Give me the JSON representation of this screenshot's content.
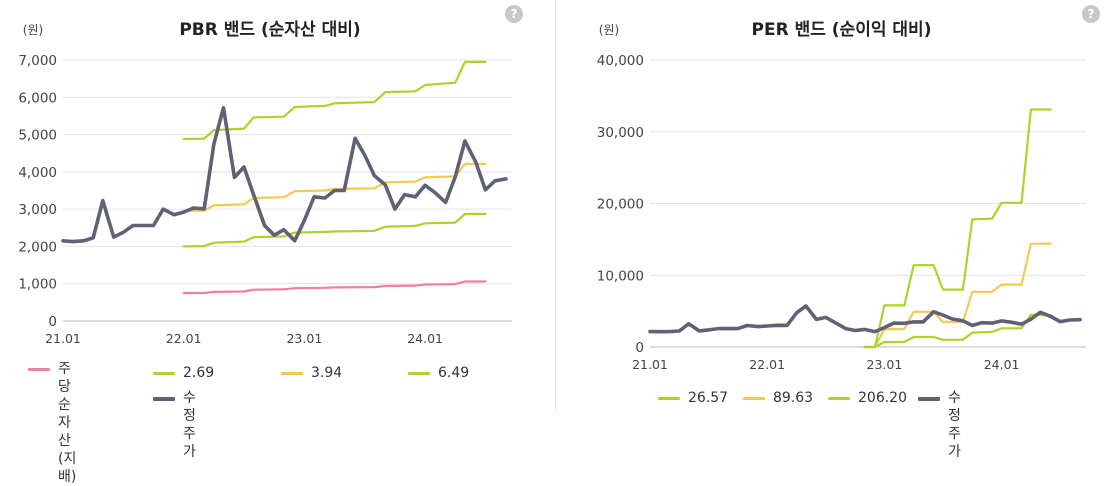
{
  "chart_data": [
    {
      "type": "line",
      "title": "PBR 밴드 (순자산 대비)",
      "y_unit": "(원)",
      "ylim": [
        0,
        7000
      ],
      "y_ticks": [
        "0",
        "1,000",
        "2,000",
        "3,000",
        "4,000",
        "5,000",
        "6,000",
        "7,000"
      ],
      "x_ticks": [
        "21.01",
        "22.01",
        "23.01",
        "24.01"
      ],
      "grid": "horizontal",
      "legend_position": "bottom",
      "series": [
        {
          "name": "주당순자산(지배)",
          "color": "#f07f9a",
          "points": [
            [
              2022.0,
              750
            ],
            [
              2022.17,
              750
            ],
            [
              2022.25,
              780
            ],
            [
              2022.5,
              790
            ],
            [
              2022.58,
              840
            ],
            [
              2022.83,
              850
            ],
            [
              2022.92,
              880
            ],
            [
              2023.17,
              890
            ],
            [
              2023.25,
              900
            ],
            [
              2023.58,
              910
            ],
            [
              2023.67,
              940
            ],
            [
              2023.92,
              950
            ],
            [
              2024.0,
              980
            ],
            [
              2024.25,
              990
            ],
            [
              2024.33,
              1060
            ],
            [
              2024.5,
              1060
            ]
          ]
        },
        {
          "name": "2.69",
          "color": "#a8d42c",
          "points": [
            [
              2022.0,
              2000
            ],
            [
              2022.17,
              2010
            ],
            [
              2022.25,
              2100
            ],
            [
              2022.5,
              2130
            ],
            [
              2022.58,
              2250
            ],
            [
              2022.83,
              2270
            ],
            [
              2022.92,
              2370
            ],
            [
              2023.17,
              2390
            ],
            [
              2023.25,
              2400
            ],
            [
              2023.58,
              2420
            ],
            [
              2023.67,
              2530
            ],
            [
              2023.92,
              2550
            ],
            [
              2024.0,
              2620
            ],
            [
              2024.25,
              2640
            ],
            [
              2024.33,
              2870
            ],
            [
              2024.5,
              2870
            ]
          ]
        },
        {
          "name": "3.94",
          "color": "#f5c850",
          "points": [
            [
              2022.0,
              2950
            ],
            [
              2022.17,
              2960
            ],
            [
              2022.25,
              3100
            ],
            [
              2022.5,
              3130
            ],
            [
              2022.58,
              3300
            ],
            [
              2022.83,
              3320
            ],
            [
              2022.92,
              3480
            ],
            [
              2023.17,
              3500
            ],
            [
              2023.25,
              3540
            ],
            [
              2023.58,
              3560
            ],
            [
              2023.67,
              3720
            ],
            [
              2023.92,
              3740
            ],
            [
              2024.0,
              3850
            ],
            [
              2024.25,
              3880
            ],
            [
              2024.33,
              4210
            ],
            [
              2024.5,
              4210
            ]
          ]
        },
        {
          "name": "6.49",
          "color": "#a8d42c",
          "points": [
            [
              2022.0,
              4880
            ],
            [
              2022.17,
              4890
            ],
            [
              2022.25,
              5120
            ],
            [
              2022.5,
              5160
            ],
            [
              2022.58,
              5460
            ],
            [
              2022.83,
              5480
            ],
            [
              2022.92,
              5740
            ],
            [
              2023.17,
              5770
            ],
            [
              2023.25,
              5840
            ],
            [
              2023.58,
              5870
            ],
            [
              2023.67,
              6140
            ],
            [
              2023.92,
              6160
            ],
            [
              2024.0,
              6330
            ],
            [
              2024.25,
              6390
            ],
            [
              2024.33,
              6950
            ],
            [
              2024.5,
              6950
            ]
          ]
        },
        {
          "name": "수정주가",
          "color": "#5f6175",
          "points": [
            [
              2021.0,
              2150
            ],
            [
              2021.08,
              2130
            ],
            [
              2021.17,
              2150
            ],
            [
              2021.25,
              2230
            ],
            [
              2021.33,
              3230
            ],
            [
              2021.42,
              2250
            ],
            [
              2021.5,
              2380
            ],
            [
              2021.58,
              2560
            ],
            [
              2021.67,
              2560
            ],
            [
              2021.75,
              2560
            ],
            [
              2021.83,
              3000
            ],
            [
              2021.92,
              2850
            ],
            [
              2022.0,
              2920
            ],
            [
              2022.08,
              3030
            ],
            [
              2022.17,
              3010
            ],
            [
              2022.25,
              4750
            ],
            [
              2022.33,
              5720
            ],
            [
              2022.42,
              3850
            ],
            [
              2022.5,
              4130
            ],
            [
              2022.58,
              3380
            ],
            [
              2022.67,
              2560
            ],
            [
              2022.75,
              2300
            ],
            [
              2022.83,
              2450
            ],
            [
              2022.92,
              2150
            ],
            [
              2023.0,
              2700
            ],
            [
              2023.08,
              3330
            ],
            [
              2023.17,
              3300
            ],
            [
              2023.25,
              3500
            ],
            [
              2023.33,
              3500
            ],
            [
              2023.42,
              4900
            ],
            [
              2023.5,
              4450
            ],
            [
              2023.58,
              3900
            ],
            [
              2023.67,
              3650
            ],
            [
              2023.75,
              3000
            ],
            [
              2023.83,
              3390
            ],
            [
              2023.92,
              3330
            ],
            [
              2024.0,
              3640
            ],
            [
              2024.08,
              3450
            ],
            [
              2024.17,
              3180
            ],
            [
              2024.25,
              3870
            ],
            [
              2024.33,
              4830
            ],
            [
              2024.42,
              4260
            ],
            [
              2024.5,
              3520
            ],
            [
              2024.58,
              3760
            ],
            [
              2024.67,
              3810
            ]
          ]
        }
      ]
    },
    {
      "type": "line",
      "title": "PER 밴드 (순이익 대비)",
      "y_unit": "(원)",
      "ylim": [
        0,
        40000
      ],
      "y_ticks": [
        "0",
        "10,000",
        "20,000",
        "30,000",
        "40,000"
      ],
      "x_ticks": [
        "21.01",
        "22.01",
        "23.01",
        "24.01"
      ],
      "grid": "horizontal",
      "legend_position": "bottom",
      "series": [
        {
          "name": "26.57",
          "color": "#a8d42c",
          "points": [
            [
              2022.83,
              0
            ],
            [
              2022.92,
              0
            ],
            [
              2023.0,
              700
            ],
            [
              2023.17,
              700
            ],
            [
              2023.25,
              1400
            ],
            [
              2023.42,
              1400
            ],
            [
              2023.5,
              1000
            ],
            [
              2023.67,
              1000
            ],
            [
              2023.75,
              2000
            ],
            [
              2023.92,
              2100
            ],
            [
              2024.0,
              2600
            ],
            [
              2024.17,
              2600
            ],
            [
              2024.25,
              4500
            ],
            [
              2024.42,
              4400
            ]
          ]
        },
        {
          "name": "89.63",
          "color": "#f5c850",
          "points": [
            [
              2022.83,
              0
            ],
            [
              2022.92,
              0
            ],
            [
              2023.0,
              2500
            ],
            [
              2023.17,
              2500
            ],
            [
              2023.25,
              4900
            ],
            [
              2023.42,
              4900
            ],
            [
              2023.5,
              3500
            ],
            [
              2023.67,
              3500
            ],
            [
              2023.75,
              7700
            ],
            [
              2023.92,
              7700
            ],
            [
              2024.0,
              8700
            ],
            [
              2024.17,
              8700
            ],
            [
              2024.25,
              14400
            ],
            [
              2024.42,
              14400
            ]
          ]
        },
        {
          "name": "206.20",
          "color": "#a8d42c",
          "points": [
            [
              2022.83,
              0
            ],
            [
              2022.92,
              0
            ],
            [
              2023.0,
              5800
            ],
            [
              2023.17,
              5800
            ],
            [
              2023.25,
              11400
            ],
            [
              2023.42,
              11400
            ],
            [
              2023.5,
              8000
            ],
            [
              2023.67,
              8000
            ],
            [
              2023.75,
              17800
            ],
            [
              2023.92,
              17900
            ],
            [
              2024.0,
              20100
            ],
            [
              2024.17,
              20100
            ],
            [
              2024.25,
              33100
            ],
            [
              2024.42,
              33100
            ]
          ]
        },
        {
          "name": "수정주가",
          "color": "#5f6175",
          "points": [
            [
              2021.0,
              2150
            ],
            [
              2021.08,
              2130
            ],
            [
              2021.17,
              2150
            ],
            [
              2021.25,
              2230
            ],
            [
              2021.33,
              3230
            ],
            [
              2021.42,
              2250
            ],
            [
              2021.5,
              2380
            ],
            [
              2021.58,
              2560
            ],
            [
              2021.67,
              2560
            ],
            [
              2021.75,
              2560
            ],
            [
              2021.83,
              3000
            ],
            [
              2021.92,
              2850
            ],
            [
              2022.0,
              2920
            ],
            [
              2022.08,
              3030
            ],
            [
              2022.17,
              3010
            ],
            [
              2022.25,
              4750
            ],
            [
              2022.33,
              5720
            ],
            [
              2022.42,
              3850
            ],
            [
              2022.5,
              4130
            ],
            [
              2022.58,
              3380
            ],
            [
              2022.67,
              2560
            ],
            [
              2022.75,
              2300
            ],
            [
              2022.83,
              2450
            ],
            [
              2022.92,
              2150
            ],
            [
              2023.0,
              2700
            ],
            [
              2023.08,
              3330
            ],
            [
              2023.17,
              3300
            ],
            [
              2023.25,
              3500
            ],
            [
              2023.33,
              3500
            ],
            [
              2023.42,
              4900
            ],
            [
              2023.5,
              4450
            ],
            [
              2023.58,
              3900
            ],
            [
              2023.67,
              3650
            ],
            [
              2023.75,
              3000
            ],
            [
              2023.83,
              3390
            ],
            [
              2023.92,
              3330
            ],
            [
              2024.0,
              3640
            ],
            [
              2024.08,
              3450
            ],
            [
              2024.17,
              3180
            ],
            [
              2024.25,
              3870
            ],
            [
              2024.33,
              4830
            ],
            [
              2024.42,
              4260
            ],
            [
              2024.5,
              3520
            ],
            [
              2024.58,
              3760
            ],
            [
              2024.67,
              3810
            ]
          ]
        }
      ]
    }
  ],
  "help_icon": "question-circle-icon",
  "help_label": "?",
  "legend_left": [
    {
      "label": "주당순자산(지배)",
      "display": "주당순자\n산(지배)",
      "color": "#f07f9a"
    },
    {
      "label": "2.69",
      "color": "#a8d42c"
    },
    {
      "label": "3.94",
      "color": "#f5c850"
    },
    {
      "label": "6.49",
      "color": "#a8d42c"
    },
    {
      "label": "수정주가",
      "color": "#5f6175"
    }
  ],
  "legend_right": [
    {
      "label": "26.57",
      "color": "#a8d42c"
    },
    {
      "label": "89.63",
      "color": "#f5c850"
    },
    {
      "label": "206.20",
      "color": "#a8d42c"
    },
    {
      "label": "수정주가",
      "color": "#5f6175"
    }
  ]
}
